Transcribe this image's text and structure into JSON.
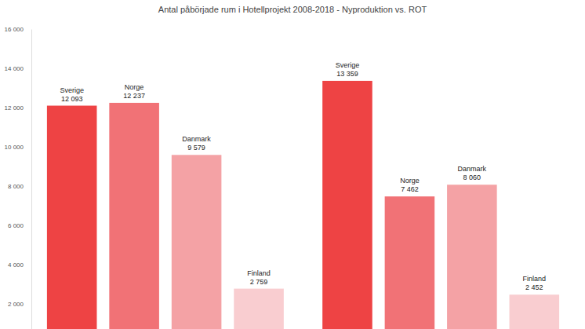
{
  "chart_data": {
    "type": "bar",
    "title": "Antal påbörjade rum i Hotellprojekt 2008-2018 - Nyproduktion vs. ROT",
    "categories": [
      null,
      null
    ],
    "series": [
      {
        "name": "Sverige",
        "color": "#ee4344",
        "values": [
          12093,
          13359
        ],
        "value_labels": [
          "12 093",
          "13 359"
        ]
      },
      {
        "name": "Norge",
        "color": "#f17276",
        "values": [
          12237,
          7462
        ],
        "value_labels": [
          "12 237",
          "7 462"
        ]
      },
      {
        "name": "Danmark",
        "color": "#f4a2a5",
        "values": [
          9579,
          8060
        ],
        "value_labels": [
          "9 579",
          "8 060"
        ]
      },
      {
        "name": "Finland",
        "color": "#f9cdd0",
        "values": [
          2759,
          2452
        ],
        "value_labels": [
          "2 759",
          "2 452"
        ]
      }
    ],
    "ylim": [
      700,
      16000
    ],
    "yticks": [
      {
        "value": 2000,
        "label": "2 000"
      },
      {
        "value": 4000,
        "label": "4 000"
      },
      {
        "value": 6000,
        "label": "6 000"
      },
      {
        "value": 8000,
        "label": "8 000"
      },
      {
        "value": 10000,
        "label": "10 000"
      },
      {
        "value": 12000,
        "label": "12 000"
      },
      {
        "value": 14000,
        "label": "14 000"
      },
      {
        "value": 16000,
        "label": "16 000"
      }
    ],
    "data_labels": true,
    "grid": false
  }
}
